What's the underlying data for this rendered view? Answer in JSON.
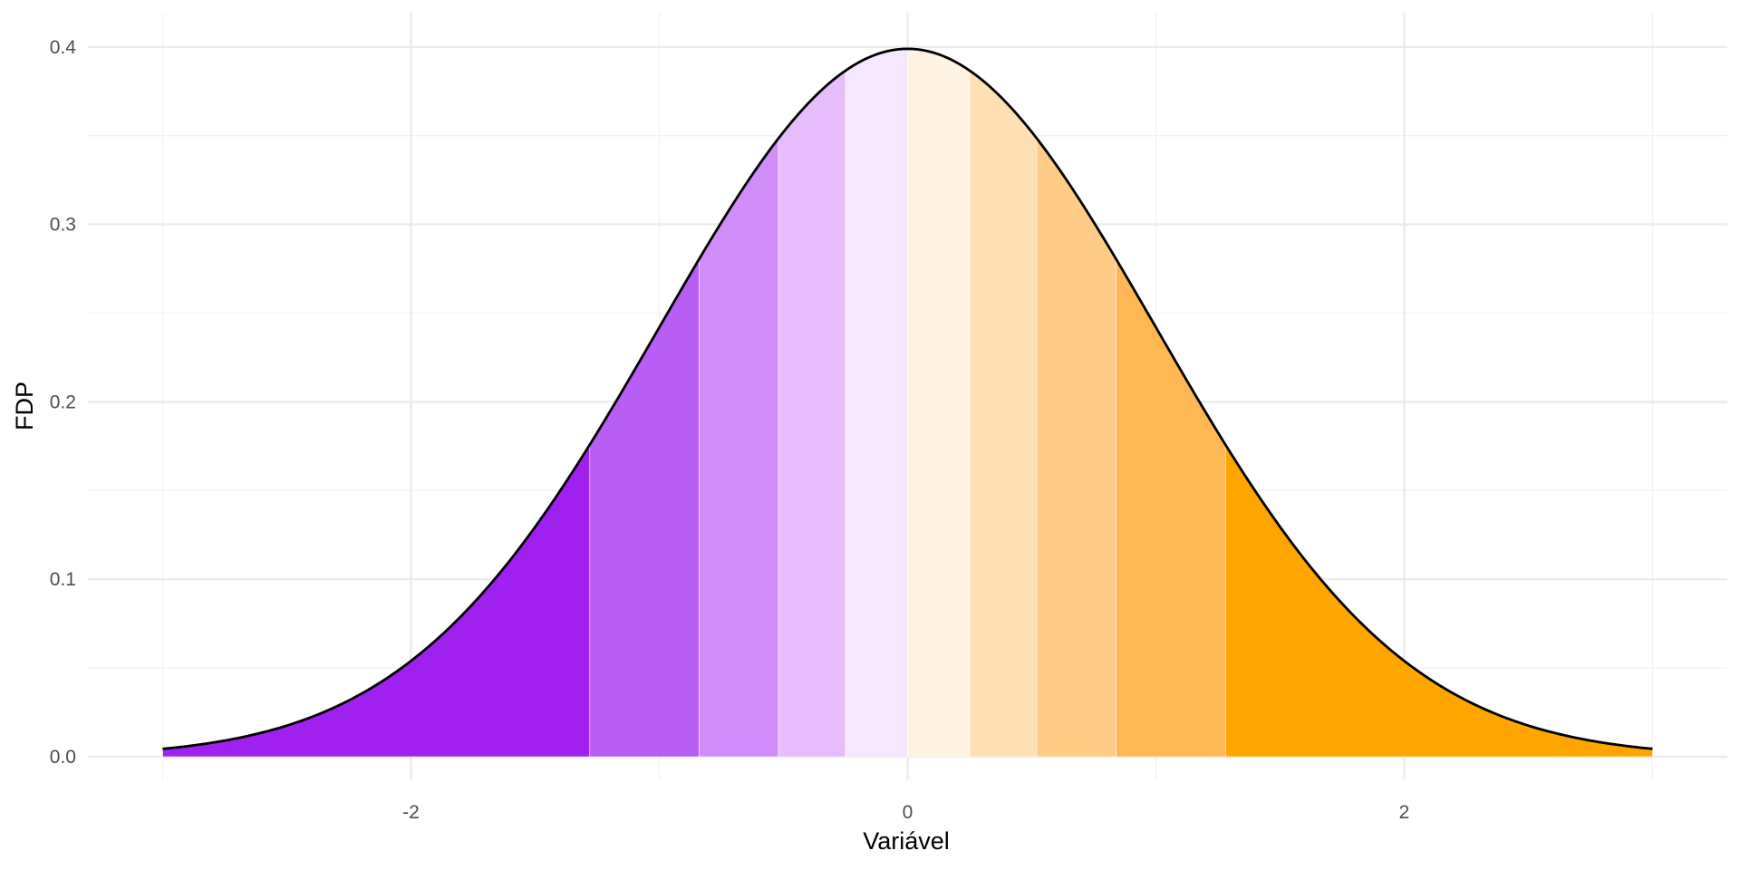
{
  "chart_data": {
    "type": "area",
    "title": "",
    "xlabel": "Variável",
    "ylabel": "FDP",
    "xlim": [
      -3,
      3
    ],
    "ylim": [
      0,
      0.4
    ],
    "x_ticks": [
      -2,
      0,
      2
    ],
    "x_tick_labels": [
      "-2",
      "0",
      "2"
    ],
    "y_ticks": [
      0,
      0.1,
      0.2,
      0.3,
      0.4
    ],
    "y_tick_labels": [
      "0.0",
      "0.1",
      "0.2",
      "0.3",
      "0.4"
    ],
    "grid": true,
    "legend": "none",
    "curve": {
      "function": "standard normal density",
      "mean": 0,
      "sd": 1,
      "color": "#000000"
    },
    "bands": [
      {
        "x_from": -3.0,
        "x_to": -1.28,
        "color": "#a020f0"
      },
      {
        "x_from": -1.28,
        "x_to": -0.84,
        "color": "#b85ef4"
      },
      {
        "x_from": -0.84,
        "x_to": -0.52,
        "color": "#d08cf8"
      },
      {
        "x_from": -0.52,
        "x_to": -0.25,
        "color": "#e6bcfc"
      },
      {
        "x_from": -0.25,
        "x_to": 0.0,
        "color": "#f5e8fe"
      },
      {
        "x_from": 0.0,
        "x_to": 0.25,
        "color": "#fff3e2"
      },
      {
        "x_from": 0.25,
        "x_to": 0.52,
        "color": "#ffe0b2"
      },
      {
        "x_from": 0.52,
        "x_to": 0.84,
        "color": "#fecc86"
      },
      {
        "x_from": 0.84,
        "x_to": 1.28,
        "color": "#feb752"
      },
      {
        "x_from": 1.28,
        "x_to": 3.0,
        "color": "#ffa500"
      }
    ]
  }
}
